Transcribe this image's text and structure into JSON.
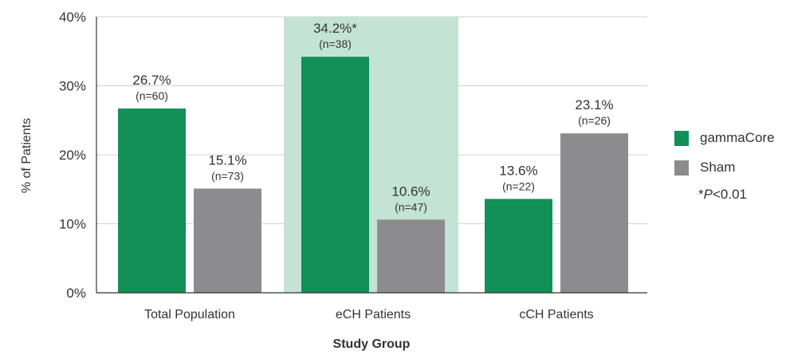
{
  "chart_data": {
    "type": "bar",
    "categories": [
      "Total Population",
      "eCH Patients",
      "cCH Patients"
    ],
    "series": [
      {
        "name": "gammaCore",
        "color": "#138f58",
        "values": [
          26.7,
          34.2,
          13.6
        ],
        "labels": [
          "26.7%",
          "34.2%*",
          "13.6%"
        ],
        "n": [
          "(n=60)",
          "(n=38)",
          "(n=22)"
        ]
      },
      {
        "name": "Sham",
        "color": "#8c8c8e",
        "values": [
          15.1,
          10.6,
          23.1
        ],
        "labels": [
          "15.1%",
          "10.6%",
          "23.1%"
        ],
        "n": [
          "(n=73)",
          "(n=47)",
          "(n=26)"
        ]
      }
    ],
    "highlight_category": "eCH Patients",
    "highlight_color": "#c3e3d4",
    "ylim": [
      0,
      40
    ],
    "yticks": [
      0,
      10,
      20,
      30,
      40
    ],
    "ytick_labels": [
      "0%",
      "10%",
      "20%",
      "30%",
      "40%"
    ],
    "ylabel": "% of Patients",
    "xlabel": "Study Group",
    "grid": true,
    "legend_position": "right",
    "footnote": {
      "prefix": "*",
      "italic": "P",
      "rest": "<0.01"
    }
  }
}
